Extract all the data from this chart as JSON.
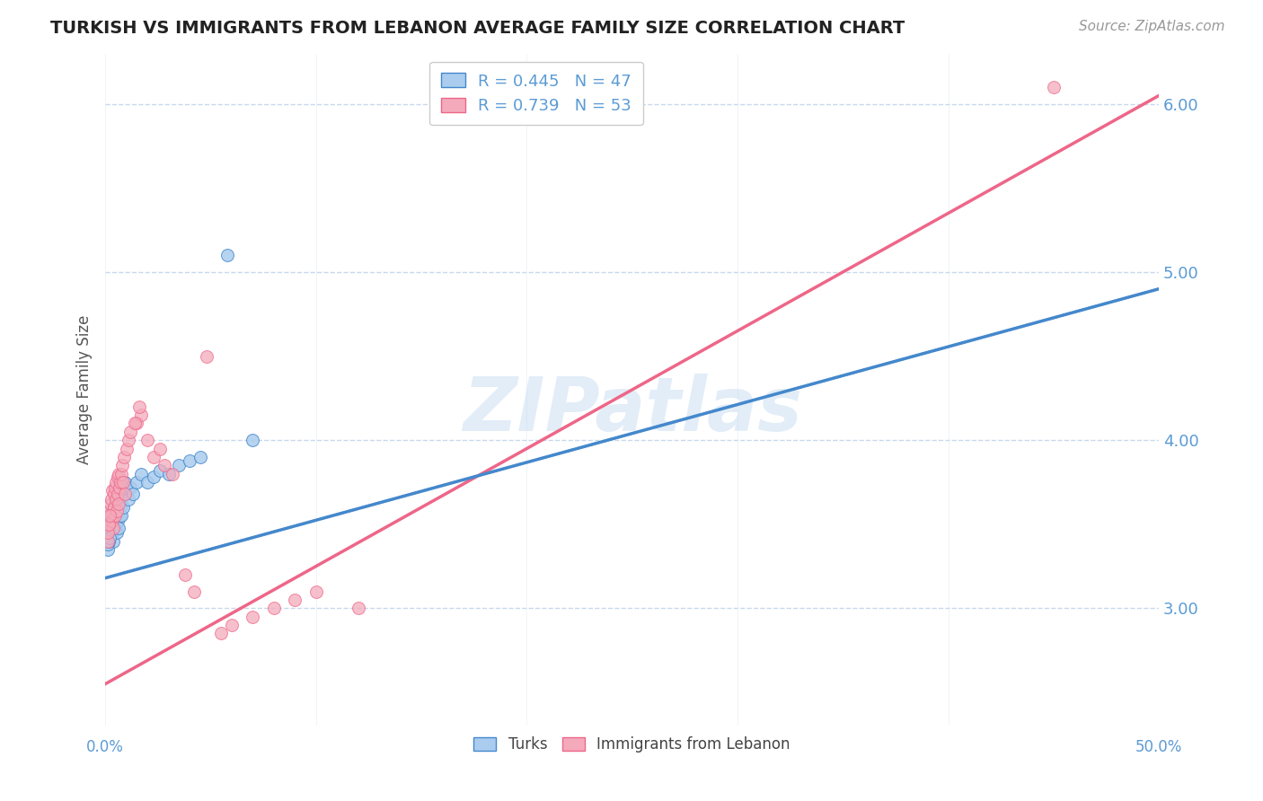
{
  "title": "TURKISH VS IMMIGRANTS FROM LEBANON AVERAGE FAMILY SIZE CORRELATION CHART",
  "source": "Source: ZipAtlas.com",
  "ylabel": "Average Family Size",
  "yticks_right": [
    3.0,
    4.0,
    5.0,
    6.0
  ],
  "watermark": "ZIPatlas",
  "turks_color": "#aaccee",
  "lebanon_color": "#f4aabb",
  "turks_line_color": "#4488cc",
  "lebanon_line_color": "#ee6688",
  "dashed_line_color": "#99bbdd",
  "turks_R": 0.445,
  "turks_N": 47,
  "lebanon_R": 0.739,
  "lebanon_N": 53,
  "turks_x": [
    0.18,
    0.22,
    0.25,
    0.28,
    0.3,
    0.32,
    0.35,
    0.38,
    0.4,
    0.42,
    0.45,
    0.48,
    0.5,
    0.52,
    0.55,
    0.58,
    0.6,
    0.62,
    0.65,
    0.68,
    0.7,
    0.72,
    0.75,
    0.78,
    0.8,
    0.85,
    0.9,
    0.95,
    1.0,
    1.1,
    1.2,
    1.3,
    1.5,
    1.7,
    2.0,
    2.3,
    2.6,
    3.0,
    3.5,
    4.0,
    4.5,
    0.1,
    0.12,
    0.15,
    0.2,
    5.8,
    7.0
  ],
  "turks_y": [
    3.42,
    3.5,
    3.55,
    3.48,
    3.52,
    3.45,
    3.58,
    3.4,
    3.53,
    3.6,
    3.47,
    3.55,
    3.5,
    3.62,
    3.45,
    3.58,
    3.52,
    3.65,
    3.48,
    3.55,
    3.6,
    3.7,
    3.55,
    3.65,
    3.72,
    3.6,
    3.68,
    3.75,
    3.7,
    3.65,
    3.72,
    3.68,
    3.75,
    3.8,
    3.75,
    3.78,
    3.82,
    3.8,
    3.85,
    3.88,
    3.9,
    3.35,
    3.38,
    3.4,
    3.42,
    5.1,
    4.0
  ],
  "lebanon_x": [
    0.18,
    0.22,
    0.25,
    0.28,
    0.3,
    0.32,
    0.35,
    0.38,
    0.4,
    0.42,
    0.45,
    0.48,
    0.5,
    0.52,
    0.55,
    0.58,
    0.6,
    0.62,
    0.65,
    0.68,
    0.7,
    0.75,
    0.8,
    0.9,
    1.0,
    1.1,
    1.2,
    1.5,
    1.7,
    2.0,
    2.3,
    2.8,
    3.2,
    3.8,
    4.2,
    0.1,
    0.12,
    0.15,
    0.2,
    4.8,
    1.4,
    1.6,
    0.85,
    0.95,
    2.6,
    5.5,
    6.0,
    7.0,
    8.0,
    9.0,
    10.0,
    12.0,
    45.0
  ],
  "lebanon_y": [
    3.5,
    3.58,
    3.62,
    3.55,
    3.65,
    3.52,
    3.7,
    3.48,
    3.6,
    3.68,
    3.55,
    3.72,
    3.65,
    3.75,
    3.58,
    3.78,
    3.68,
    3.8,
    3.62,
    3.72,
    3.75,
    3.8,
    3.85,
    3.9,
    3.95,
    4.0,
    4.05,
    4.1,
    4.15,
    4.0,
    3.9,
    3.85,
    3.8,
    3.2,
    3.1,
    3.4,
    3.45,
    3.5,
    3.55,
    4.5,
    4.1,
    4.2,
    3.75,
    3.68,
    3.95,
    2.85,
    2.9,
    2.95,
    3.0,
    3.05,
    3.1,
    3.0,
    6.1
  ],
  "turks_line_x0": 0.0,
  "turks_line_y0": 3.18,
  "turks_line_x1": 50.0,
  "turks_line_y1": 4.9,
  "lebanon_line_x0": 0.0,
  "lebanon_line_y0": 2.55,
  "lebanon_line_x1": 50.0,
  "lebanon_line_y1": 6.05,
  "xmin": 0.0,
  "xmax": 50.0,
  "ymin": 2.3,
  "ymax": 6.3,
  "background_color": "#ffffff",
  "grid_color": "#c8d8ec",
  "title_color": "#222222",
  "axis_label_color": "#5b9bd5",
  "watermark_color": "#c0d8f0",
  "watermark_alpha": 0.45
}
